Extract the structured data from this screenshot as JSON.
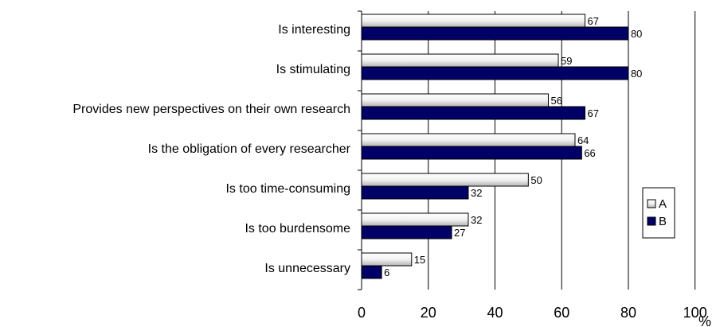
{
  "chart_data": {
    "type": "bar",
    "orientation": "horizontal",
    "categories": [
      "Is interesting",
      "Is stimulating",
      "Provides new perspectives on their own research",
      "Is the obligation of every researcher",
      "Is too time-consuming",
      "Is too burdensome",
      "Is unnecessary"
    ],
    "series": [
      {
        "name": "A",
        "values": [
          67,
          59,
          56,
          64,
          50,
          32,
          15
        ],
        "color": "#e8e8e8"
      },
      {
        "name": "B",
        "values": [
          80,
          80,
          67,
          66,
          32,
          27,
          6
        ],
        "color": "#000066"
      }
    ],
    "xlim": [
      0,
      100
    ],
    "xticks": [
      "0",
      "20",
      "40",
      "60",
      "80",
      "100"
    ],
    "xunit": "%",
    "grid": true,
    "legend_position": "right"
  }
}
